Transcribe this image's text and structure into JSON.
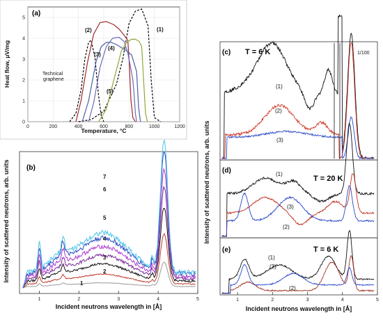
{
  "chart_data": [
    {
      "id": "a",
      "type": "line",
      "panel_label": "(a)",
      "xlabel": "Temperature, °C",
      "ylabel": "Heat flow, μV/mg",
      "xlim": [
        0,
        1200
      ],
      "ylim": [
        0,
        5.5
      ],
      "x_ticks": [
        0,
        200,
        400,
        600,
        800,
        1000,
        1200
      ],
      "y_ticks": [
        0,
        1,
        2,
        3,
        4,
        5
      ],
      "annotation": "Technical graphene",
      "curve_labels": [
        "(1)",
        "(2)",
        "(3)",
        "(4)",
        "(5)"
      ],
      "series": [
        {
          "label": "(1)",
          "color": "#000000",
          "dashed": true,
          "x": [
            400,
            500,
            600,
            700,
            750,
            800,
            850,
            900,
            950,
            975,
            1000,
            1050
          ],
          "y": [
            0,
            0.1,
            0.5,
            1.8,
            3.0,
            4.7,
            5.3,
            5.4,
            4.6,
            2.0,
            0.2,
            0
          ]
        },
        {
          "label": "Technical graphene",
          "color": "#000000",
          "dashed": true,
          "x": [
            330,
            380,
            420,
            450,
            480,
            500,
            530,
            560,
            580,
            600
          ],
          "y": [
            0,
            0.4,
            1.5,
            3.0,
            3.8,
            3.9,
            3.1,
            1.2,
            0.3,
            0
          ]
        },
        {
          "label": "(2)",
          "color": "#a0282a",
          "dashed": false,
          "x": [
            380,
            420,
            470,
            520,
            570,
            620,
            680,
            720,
            760,
            790,
            800,
            815,
            830,
            850
          ],
          "y": [
            0,
            1.0,
            2.8,
            4.2,
            4.75,
            4.8,
            4.65,
            4.45,
            4.15,
            3.9,
            3.0,
            1.0,
            0.2,
            0
          ]
        },
        {
          "label": "(3)",
          "color": "#4a5fa8",
          "dashed": false,
          "x": [
            430,
            480,
            540,
            580,
            620,
            660,
            700,
            740,
            780,
            820,
            860,
            875,
            890
          ],
          "y": [
            0,
            1.0,
            2.9,
            3.6,
            3.8,
            3.8,
            3.7,
            3.55,
            3.4,
            3.2,
            2.4,
            0.7,
            0
          ]
        },
        {
          "label": "(4)",
          "color": "#6a6ab8",
          "dashed": false,
          "x": [
            480,
            520,
            570,
            620,
            670,
            720,
            760,
            790,
            815,
            830,
            840,
            850,
            860
          ],
          "y": [
            0,
            0.9,
            2.6,
            3.6,
            4.0,
            4.05,
            3.85,
            3.3,
            2.5,
            2.0,
            1.3,
            0.4,
            0
          ]
        },
        {
          "label": "(5)",
          "color": "#8da832",
          "dashed": false,
          "x": [
            560,
            620,
            680,
            740,
            780,
            820,
            850,
            880,
            900,
            915,
            930,
            945
          ],
          "y": [
            0,
            0.6,
            2.0,
            3.4,
            3.8,
            3.95,
            3.95,
            3.85,
            3.6,
            2.0,
            0.4,
            0
          ]
        }
      ]
    },
    {
      "id": "b",
      "type": "line",
      "panel_label": "(b)",
      "xlabel": "Incident neutrons wavelength in [Å]",
      "ylabel": "Intensity of scattered neutrons, arb. units",
      "xlim": [
        0.5,
        5
      ],
      "x_ticks": [
        1,
        2,
        3,
        4,
        5
      ],
      "curve_labels": [
        "1",
        "2",
        "3",
        "4",
        "5",
        "6",
        "7"
      ],
      "series": [
        {
          "label": "1",
          "color": "#9a9a9a",
          "peak": 0.35,
          "base": 0.06
        },
        {
          "label": "2",
          "color": "#c0392b",
          "peak": 0.72,
          "base": 0.16
        },
        {
          "label": "3",
          "color": "#111111",
          "peak": 1.05,
          "base": 0.28
        },
        {
          "label": "4",
          "color": "#7a2a9a",
          "peak": 1.32,
          "base": 0.38
        },
        {
          "label": "5",
          "color": "#b03ad0",
          "peak": 1.52,
          "base": 0.48
        },
        {
          "label": "6",
          "color": "#2a4ac0",
          "peak": 1.78,
          "base": 0.58
        },
        {
          "label": "7",
          "color": "#4fc3e8",
          "peak": 1.9,
          "base": 0.64
        }
      ]
    },
    {
      "id": "c",
      "type": "line",
      "panel_label": "(c)",
      "title": "T = 6 K",
      "annotation": "1/100",
      "xlim": [
        0.5,
        5
      ],
      "curve_labels": [
        "(1)",
        "(2)",
        "(3)"
      ],
      "series": [
        {
          "label": "(1)",
          "color": "#111111"
        },
        {
          "label": "(2)",
          "color": "#d03a2a"
        },
        {
          "label": "(3)",
          "color": "#2a48c8"
        }
      ]
    },
    {
      "id": "d",
      "type": "line",
      "panel_label": "(d)",
      "title": "T = 20 K",
      "xlim": [
        0.5,
        5
      ],
      "curve_labels": [
        "(1)",
        "(2)",
        "(3)"
      ],
      "series": [
        {
          "label": "(1)",
          "color": "#111111"
        },
        {
          "label": "(2)",
          "color": "#c03020"
        },
        {
          "label": "(3)",
          "color": "#2a48c8"
        }
      ]
    },
    {
      "id": "e",
      "type": "line",
      "panel_label": "(e)",
      "title": "T = 6 K",
      "xlabel": "Incident neutrons wavelength in [Å]",
      "xlim": [
        0.5,
        5
      ],
      "x_ticks": [
        1,
        2,
        3,
        4,
        5
      ],
      "curve_labels": [
        "(1)",
        "(2)",
        "(3)"
      ],
      "series": [
        {
          "label": "(1)",
          "color": "#111111"
        },
        {
          "label": "(2)",
          "color": "#a03020"
        },
        {
          "label": "(3)",
          "color": "#2a48c8"
        }
      ]
    }
  ],
  "shared_ylabel_right": "Intensity of scattered neutrons, arb. units",
  "colors": {
    "frame": "#000000",
    "grid": "#cccccc"
  }
}
